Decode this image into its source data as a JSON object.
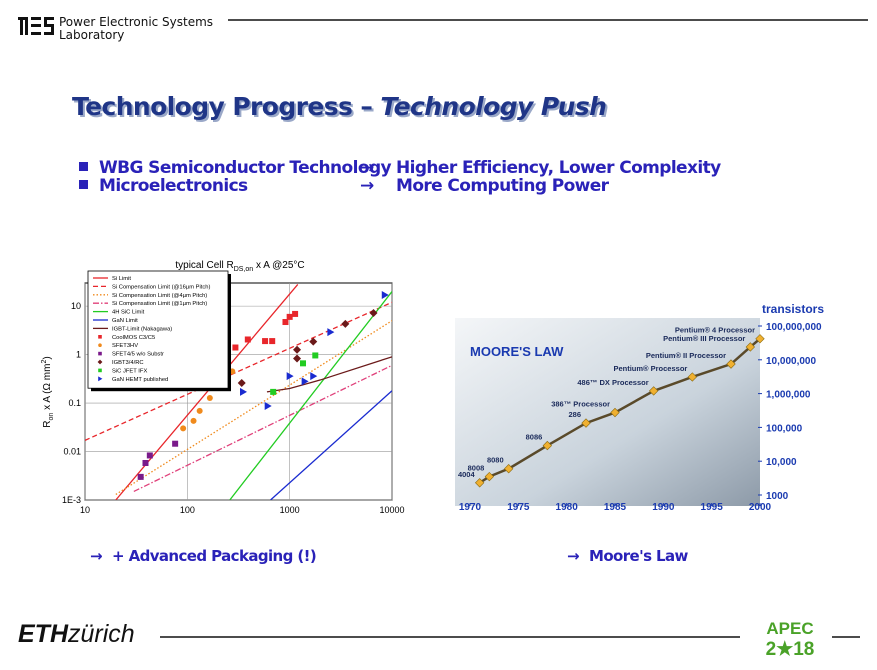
{
  "header": {
    "lab_name": [
      "Power Electronic Systems",
      "Laboratory"
    ]
  },
  "title": {
    "main": "Technology Progress –",
    "emphasis": "Technology Push"
  },
  "arrow": "→",
  "bullets": [
    {
      "left": "WBG Semiconductor Technology",
      "right": "Higher Efficiency, Lower Complexity"
    },
    {
      "left": "Microelectronics",
      "right": "More Computing Power"
    }
  ],
  "captions": [
    "+ Advanced Packaging (!)",
    "Moore's Law"
  ],
  "footer": {
    "eth": "ETH",
    "city": "zürich",
    "apec": [
      "APEC",
      "2★18"
    ]
  },
  "chart_data": [
    {
      "type": "line",
      "title": "typical Cell R",
      "title_sub": "DS,on",
      "title_end": " x A  @25°C",
      "y_label": "R",
      "y_label_sub": "on",
      "y_label_mid": " x A (Ω mm",
      "y_label_sup": "2",
      "y_label_end": ")",
      "log_x": true,
      "log_y": true,
      "grid": true,
      "legend": "upper-left",
      "xlim": [
        10,
        10000
      ],
      "xticks": [
        10,
        100,
        1000,
        10000
      ],
      "ylim": [
        0.001,
        30
      ],
      "yticks": [
        {
          "value": 0.001,
          "label": "1E-3"
        },
        0.01,
        0.1,
        1,
        10
      ],
      "series": [
        {
          "name": "Si Limit",
          "type": "line",
          "color": "#e8262b",
          "dash": "solid",
          "x": [
            20,
            1200
          ],
          "values": [
            0.001,
            28
          ]
        },
        {
          "name": "Si Compensation Limit  (@16µm Pitch)",
          "type": "line",
          "color": "#e8262b",
          "dash": "dashed",
          "x": [
            10,
            10000
          ],
          "values": [
            0.017,
            12
          ]
        },
        {
          "name": "Si Compensation Limit  (@4µm Pitch)",
          "type": "line",
          "color": "#f08a1c",
          "dash": "dotted",
          "x": [
            20,
            10000
          ],
          "values": [
            0.0013,
            5
          ]
        },
        {
          "name": "Si Compensation Limit  (@1µm Pitch)",
          "type": "line",
          "color": "#e0407a",
          "dash": "dashdot",
          "x": [
            30,
            10000
          ],
          "values": [
            0.0015,
            0.6
          ]
        },
        {
          "name": "4H SiC Limit",
          "type": "line",
          "color": "#22cc22",
          "dash": "solid",
          "x": [
            260,
            10000
          ],
          "values": [
            0.001,
            20
          ]
        },
        {
          "name": "GaN Limit",
          "type": "line",
          "color": "#1a2bd0",
          "dash": "solid",
          "x": [
            650,
            10000
          ],
          "values": [
            0.001,
            0.18
          ]
        },
        {
          "name": "IGBT-Limit (Nakagawa)",
          "type": "line",
          "color": "#6b1a1a",
          "dash": "solid",
          "x": [
            600,
            1000,
            2000,
            10000
          ],
          "values": [
            0.17,
            0.2,
            0.3,
            0.9
          ]
        },
        {
          "name": "CoolMOS C3/C5",
          "type": "scatter",
          "marker": "square",
          "color": "#e8262b",
          "x": [
            295,
            390,
            575,
            675,
            910,
            1000,
            1130
          ],
          "values": [
            1.4,
            2.05,
            1.9,
            1.9,
            4.7,
            6.0,
            6.9
          ]
        },
        {
          "name": "SFET3HV",
          "type": "scatter",
          "marker": "circle",
          "color": "#f08a1c",
          "x": [
            91,
            115,
            132,
            166,
            275
          ],
          "values": [
            0.03,
            0.043,
            0.069,
            0.127,
            0.45
          ]
        },
        {
          "name": "SFET4/5 w/o Substr",
          "type": "scatter",
          "marker": "square",
          "color": "#7a1a8a",
          "x": [
            35,
            39,
            43,
            76
          ],
          "values": [
            0.003,
            0.0058,
            0.0083,
            0.0145
          ]
        },
        {
          "name": "IGBT3/4/RC",
          "type": "scatter",
          "marker": "diamond",
          "color": "#6b1a1a",
          "x": [
            340,
            1180,
            1180,
            1700,
            3500,
            6600
          ],
          "values": [
            0.26,
            1.26,
            0.83,
            1.85,
            4.3,
            7.2
          ]
        },
        {
          "name": "SiC JFET IFX",
          "type": "scatter",
          "marker": "square",
          "color": "#22cc22",
          "x": [
            690,
            1350,
            1780
          ],
          "values": [
            0.17,
            0.66,
            0.96
          ]
        },
        {
          "name": "GaN HEMT published",
          "type": "scatter",
          "marker": "triangle",
          "color": "#1a2bd0",
          "x": [
            350,
            610,
            1000,
            1400,
            1700,
            2500,
            8500
          ],
          "values": [
            0.17,
            0.087,
            0.36,
            0.28,
            0.36,
            2.9,
            17
          ]
        }
      ]
    },
    {
      "type": "line",
      "title": "MOORE'S LAW",
      "y_label": "transistors",
      "log_y": true,
      "y_axis_side": "right",
      "xlim": [
        1970,
        2000
      ],
      "xticks": [
        1970,
        1975,
        1980,
        1985,
        1990,
        1995,
        2000
      ],
      "ylim": [
        1000,
        100000000
      ],
      "yticks": [
        1000,
        {
          "value": 10000,
          "label": "10,000"
        },
        {
          "value": 100000,
          "label": "100,000"
        },
        {
          "value": 1000000,
          "label": "1,000,000"
        },
        {
          "value": 10000000,
          "label": "10,000,000"
        },
        {
          "value": 100000000,
          "label": "100,000,000"
        }
      ],
      "line_color": "#5a4a2a",
      "marker_color": "#f0b030",
      "x": [
        1971,
        1972,
        1974,
        1978,
        1982,
        1985,
        1989,
        1993,
        1997,
        1999,
        2000
      ],
      "values": [
        2300,
        3500,
        6000,
        29000,
        134000,
        275000,
        1200000,
        3100000,
        7500000,
        24000000,
        42000000
      ],
      "point_labels": [
        "4004",
        "8008",
        "8080",
        "8086",
        "286",
        "386™ Processor",
        "486™ DX Processor",
        "Pentium® Processor",
        "Pentium® II Processor",
        "Pentium® III Processor",
        "Pentium® 4 Processor"
      ]
    }
  ]
}
